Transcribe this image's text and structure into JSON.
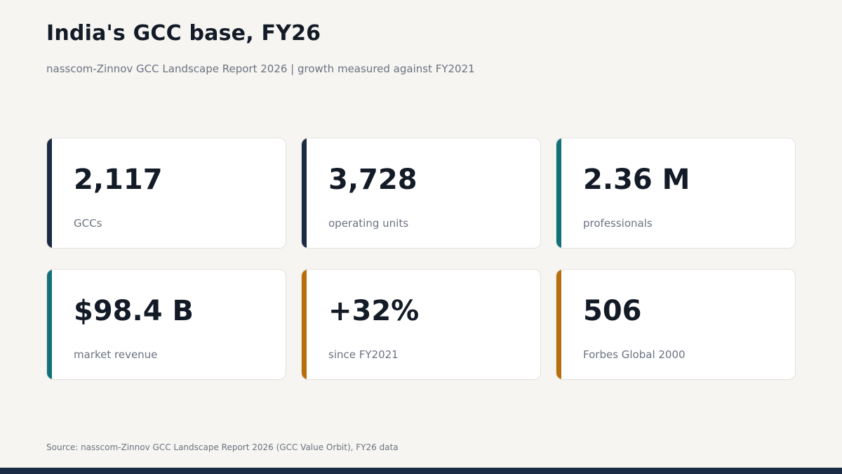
{
  "header": {
    "title": "India's GCC base, FY26",
    "subtitle": "nasscom-Zinnov GCC Landscape Report 2026  |  growth measured against FY2021"
  },
  "colors": {
    "navy": "#1b2b44",
    "teal": "#127178",
    "amber": "#b86f0b",
    "footer_bar": "#1b2b44"
  },
  "cards": [
    {
      "value": "2,117",
      "label": "GCCs",
      "accent": "#1b2b44"
    },
    {
      "value": "3,728",
      "label": "operating units",
      "accent": "#1b2b44"
    },
    {
      "value": "2.36 M",
      "label": "professionals",
      "accent": "#127178"
    },
    {
      "value": "$98.4 B",
      "label": "market revenue",
      "accent": "#127178"
    },
    {
      "value": "+32%",
      "label": "since FY2021",
      "accent": "#b86f0b"
    },
    {
      "value": "506",
      "label": "Forbes Global 2000",
      "accent": "#b86f0b"
    }
  ],
  "footer": {
    "source": "Source: nasscom-Zinnov GCC Landscape Report 2026 (GCC Value Orbit), FY26 data"
  }
}
